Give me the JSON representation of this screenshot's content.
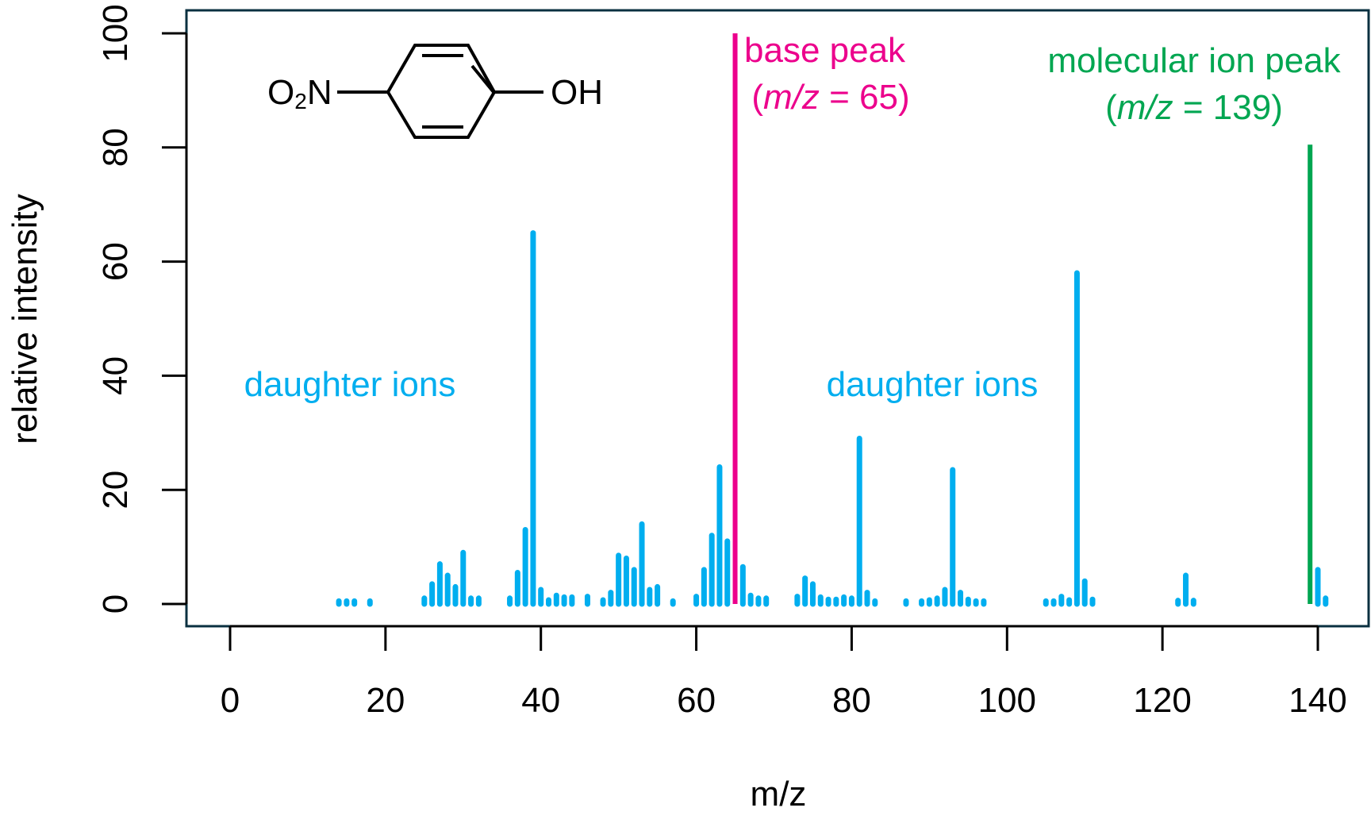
{
  "chart_data": {
    "type": "bar",
    "title": "",
    "xlabel": "m/z",
    "ylabel": "relative intensity",
    "xlim": [
      -6,
      147
    ],
    "ylim": [
      -4,
      104
    ],
    "xticks": [
      0,
      20,
      40,
      60,
      80,
      100,
      120,
      140
    ],
    "yticks": [
      0,
      20,
      40,
      60,
      80,
      100
    ],
    "grid": false,
    "colors": {
      "daughter": "#00aeef",
      "base": "#ec008c",
      "molecular": "#00a651",
      "axis": "#000000",
      "frame": "#0a3040"
    },
    "series": [
      {
        "name": "daughter ions",
        "color": "#00aeef",
        "x": [
          14,
          15,
          16,
          18,
          25,
          26,
          27,
          28,
          29,
          30,
          31,
          32,
          36,
          37,
          38,
          39,
          40,
          41,
          42,
          43,
          44,
          46,
          48,
          49,
          50,
          51,
          52,
          53,
          54,
          55,
          57,
          60,
          61,
          62,
          63,
          64,
          66,
          67,
          68,
          69,
          73,
          74,
          75,
          76,
          77,
          78,
          79,
          80,
          81,
          82,
          83,
          87,
          89,
          90,
          91,
          92,
          93,
          94,
          95,
          96,
          97,
          105,
          106,
          107,
          108,
          109,
          110,
          111,
          122,
          123,
          124,
          140,
          141
        ],
        "y": [
          0.5,
          0.5,
          0.5,
          0.5,
          1,
          3.5,
          7,
          5,
          3,
          9,
          1,
          1,
          1,
          5.5,
          13,
          65,
          2.5,
          0.7,
          1.5,
          1.2,
          1.2,
          1.3,
          0.7,
          2,
          8.5,
          8,
          6,
          14,
          2.5,
          3,
          0.5,
          1.3,
          6,
          12,
          24,
          11,
          6.5,
          1.5,
          1,
          1,
          1.3,
          4.5,
          3.5,
          1.2,
          0.8,
          0.8,
          1.2,
          1,
          29,
          2,
          0.5,
          0.5,
          0.5,
          0.7,
          1,
          2.5,
          23.5,
          2,
          0.8,
          0.5,
          0.5,
          0.5,
          0.5,
          1.3,
          0.7,
          58,
          4,
          0.8,
          0.6,
          5,
          0.6,
          6,
          1
        ]
      },
      {
        "name": "base peak",
        "color": "#ec008c",
        "x": [
          65
        ],
        "y": [
          100
        ]
      },
      {
        "name": "molecular ion peak",
        "color": "#00a651",
        "x": [
          139
        ],
        "y": [
          80.5
        ]
      }
    ],
    "annotations": {
      "base_peak": {
        "line1": "base peak",
        "line2_pre": "(",
        "line2_italic": "m/z",
        "line2_post": " = 65)"
      },
      "molecular_ion": {
        "line1": "molecular ion peak",
        "line2_pre": "(",
        "line2_italic": "m/z",
        "line2_post": " = 139)"
      },
      "daughter_left": "daughter ions",
      "daughter_right": "daughter ions"
    },
    "molecule": {
      "left_group": "O",
      "left_sub": "2",
      "left_atom": "N",
      "right_group": "OH"
    }
  }
}
